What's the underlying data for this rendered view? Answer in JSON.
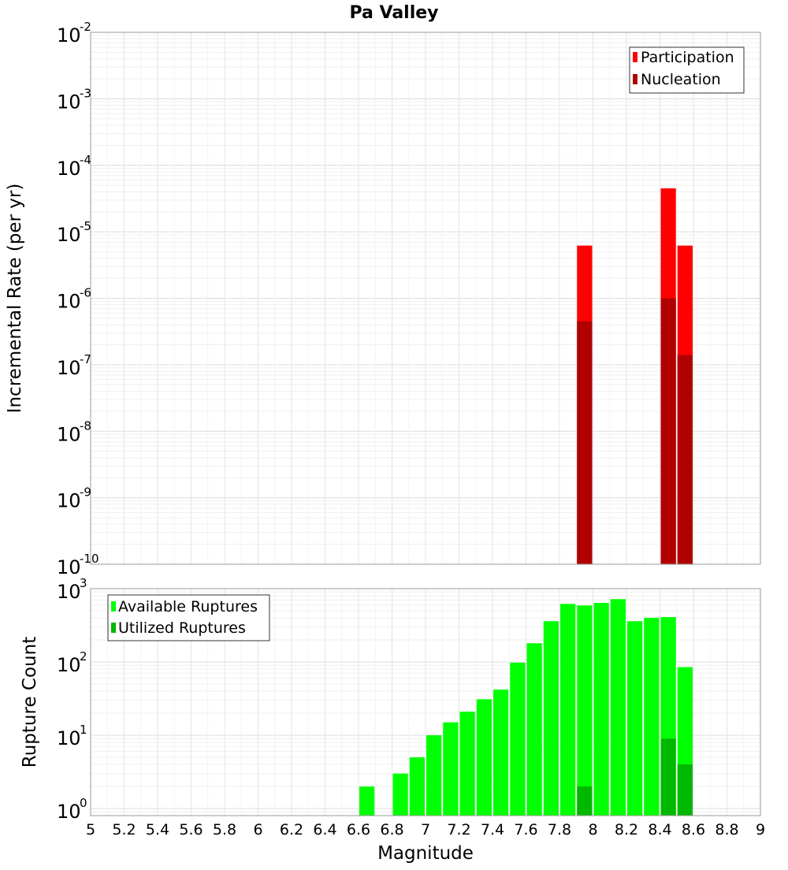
{
  "chart_data": [
    {
      "type": "bar",
      "title": "Pa Valley",
      "ylabel": "Incremental Rate (per yr)",
      "xlabel": "",
      "yscale": "log",
      "xlim": [
        5,
        9
      ],
      "ylim": [
        1e-10,
        0.01
      ],
      "y_tick_exponents": [
        -10,
        -9,
        -8,
        -7,
        -6,
        -5,
        -4,
        -3,
        -2
      ],
      "y_tick_base": "10",
      "grid": true,
      "legend_position": "top-right",
      "bin_width": 0.1,
      "series": [
        {
          "name": "Participation",
          "color": "#ff0000",
          "x": [
            7.95,
            8.45,
            8.55
          ],
          "values": [
            6.2e-06,
            4.5e-05,
            6.2e-06
          ]
        },
        {
          "name": "Nucleation",
          "color": "#b00000",
          "x": [
            7.95,
            8.45,
            8.55
          ],
          "values": [
            4.5e-07,
            1e-06,
            1.4e-07
          ]
        }
      ]
    },
    {
      "type": "bar",
      "title": "",
      "ylabel": "Rupture Count",
      "xlabel": "Magnitude",
      "yscale": "log",
      "xlim": [
        5,
        9
      ],
      "ylim": [
        0.8,
        1000
      ],
      "y_tick_exponents": [
        0,
        1,
        2,
        3
      ],
      "y_tick_base": "10",
      "x_ticks": [
        "5",
        "5.2",
        "5.4",
        "5.6",
        "5.8",
        "6",
        "6.2",
        "6.4",
        "6.6",
        "6.8",
        "7",
        "7.2",
        "7.4",
        "7.6",
        "7.8",
        "8",
        "8.2",
        "8.4",
        "8.6",
        "8.8",
        "9"
      ],
      "grid": true,
      "legend_position": "top-left",
      "bin_width": 0.1,
      "series": [
        {
          "name": "Available Ruptures",
          "color": "#00ff00",
          "x": [
            6.65,
            6.85,
            6.95,
            7.05,
            7.15,
            7.25,
            7.35,
            7.45,
            7.55,
            7.65,
            7.75,
            7.85,
            7.95,
            8.05,
            8.15,
            8.25,
            8.35,
            8.45,
            8.55
          ],
          "values": [
            2,
            3,
            5,
            10,
            15,
            21,
            31,
            42,
            98,
            180,
            360,
            620,
            590,
            640,
            720,
            360,
            400,
            410,
            85
          ]
        },
        {
          "name": "Utilized Ruptures",
          "color": "#00b800",
          "x": [
            7.95,
            8.45,
            8.55
          ],
          "values": [
            2,
            9,
            4
          ]
        }
      ]
    }
  ]
}
